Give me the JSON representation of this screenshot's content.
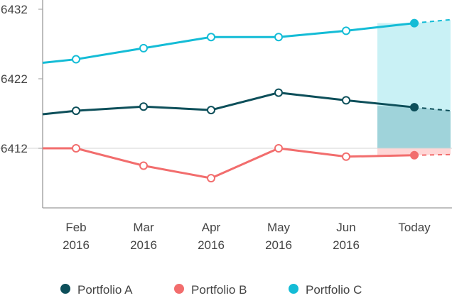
{
  "chart_data": {
    "type": "line",
    "title": "",
    "xlabel": "",
    "ylabel": "",
    "categories": [
      [
        "Feb",
        "2016"
      ],
      [
        "Mar",
        "2016"
      ],
      [
        "Apr",
        "2016"
      ],
      [
        "May",
        "2016"
      ],
      [
        "Jun",
        "2016"
      ],
      [
        "Today",
        ""
      ]
    ],
    "y_ticks": [
      "6432",
      "6422",
      "6412"
    ],
    "ylim": [
      6407,
      6433
    ],
    "series": [
      {
        "name": "Portfolio A",
        "color": "#0d4f5a",
        "start": 6416.9,
        "values": [
          6417.4,
          6418.0,
          6417.5,
          6420.0,
          6418.9,
          6417.9
        ],
        "projection": 6417.4
      },
      {
        "name": "Portfolio B",
        "color": "#f26d6d",
        "start": 6412.0,
        "values": [
          6412.0,
          6409.5,
          6407.7,
          6412.0,
          6410.8,
          6411.0
        ],
        "projection": 6411.1
      },
      {
        "name": "Portfolio C",
        "color": "#14bcd6",
        "start": 6424.3,
        "values": [
          6424.8,
          6426.4,
          6428.0,
          6428.0,
          6428.9,
          6430.0
        ],
        "projection": 6430.5
      }
    ],
    "baseline": 6412,
    "highlight": {
      "from_category": "Today",
      "color_band_a": "#9fd3da",
      "color_band_c": "#c9f1f5",
      "color_band_b": "#ffd6d6"
    },
    "grid": false,
    "legend": "bottom",
    "axis_color": "#9a9a9a"
  }
}
